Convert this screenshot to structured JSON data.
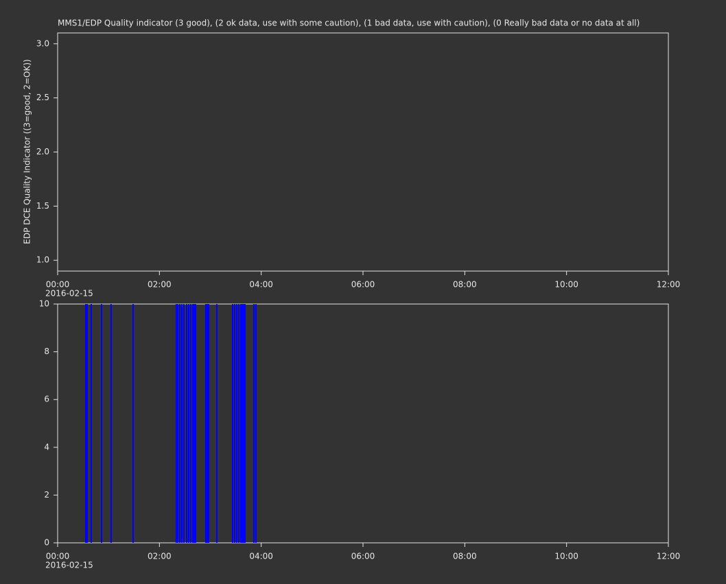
{
  "chart_data": [
    {
      "type": "line",
      "title": "MMS1/EDP  Quality indicator (3 good), (2 ok data, use with some caution), (1 bad data, use with caution), (0 Really bad data or no data at all)",
      "ylabel": "EDP DCE Quality Indicator ((3=good, 2=OK))",
      "ylim": [
        0.9,
        3.1
      ],
      "yticks": [
        {
          "value": 1,
          "label": "1.0"
        },
        {
          "value": 1.5,
          "label": "1.5"
        },
        {
          "value": 2,
          "label": "2.0"
        },
        {
          "value": 2.5,
          "label": "2.5"
        },
        {
          "value": 3,
          "label": "3.0"
        }
      ],
      "xlim": [
        0,
        12
      ],
      "xticks": [
        {
          "value": 0,
          "label": "00:00"
        },
        {
          "value": 2,
          "label": "02:00"
        },
        {
          "value": 4,
          "label": "04:00"
        },
        {
          "value": 6,
          "label": "06:00"
        },
        {
          "value": 8,
          "label": "08:00"
        },
        {
          "value": 10,
          "label": "10:00"
        },
        {
          "value": 12,
          "label": "12:00"
        }
      ],
      "date_label": "2016-02-15"
    },
    {
      "type": "bar",
      "color": "#0000ff",
      "ylim": [
        0,
        10
      ],
      "yticks": [
        0,
        2,
        4,
        6,
        8,
        10
      ],
      "xlim": [
        0,
        12
      ],
      "xticks": [
        {
          "value": 0,
          "label": "00:00"
        },
        {
          "value": 2,
          "label": "02:00"
        },
        {
          "value": 4,
          "label": "04:00"
        },
        {
          "value": 6,
          "label": "06:00"
        },
        {
          "value": 8,
          "label": "08:00"
        },
        {
          "value": 10,
          "label": "10:00"
        },
        {
          "value": 12,
          "label": "12:00"
        }
      ],
      "date_label": "2016-02-15",
      "x": [
        0.553,
        0.58,
        0.66,
        0.863,
        1.05,
        1.483,
        2.33,
        2.36,
        2.4,
        2.44,
        2.48,
        2.535,
        2.575,
        2.615,
        2.656,
        2.683,
        2.71,
        2.912,
        2.939,
        2.966,
        3.128,
        3.438,
        3.479,
        3.519,
        3.56,
        3.6,
        3.627,
        3.654,
        3.68,
        3.856,
        3.896
      ],
      "values": [
        10,
        10,
        10,
        10,
        10,
        10,
        10,
        10,
        10,
        10,
        10,
        10,
        10,
        10,
        10,
        10,
        10,
        10,
        10,
        10,
        10,
        10,
        10,
        10,
        10,
        10,
        10,
        10,
        10,
        10,
        10
      ]
    }
  ]
}
